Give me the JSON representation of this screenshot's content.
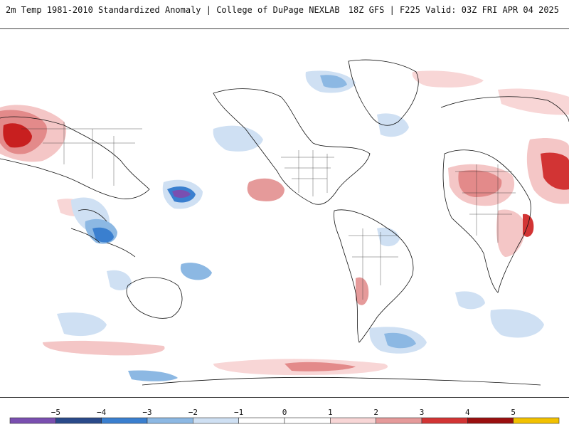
{
  "header": {
    "left_title": "2m Temp 1981-2010 Standardized Anomaly | College of DuPage NEXLAB",
    "right_title": "18Z GFS | F225 Valid: 03Z FRI APR 04 2025"
  },
  "map": {
    "variable": "2m temperature standardized anomaly",
    "projection": "global cylindrical"
  },
  "legend": {
    "tick_labels": [
      "−5",
      "−4",
      "−3",
      "−2",
      "−1",
      "0",
      "1",
      "2",
      "3",
      "4",
      "5"
    ],
    "colors": [
      "#7a4fb0",
      "#2a4a8a",
      "#3a7fcf",
      "#8cb8e3",
      "#cfe0f3",
      "#ffffff",
      "#ffffff",
      "#f8d6d6",
      "#e59a9a",
      "#d23434",
      "#9a0f0f",
      "#f2c100"
    ]
  }
}
